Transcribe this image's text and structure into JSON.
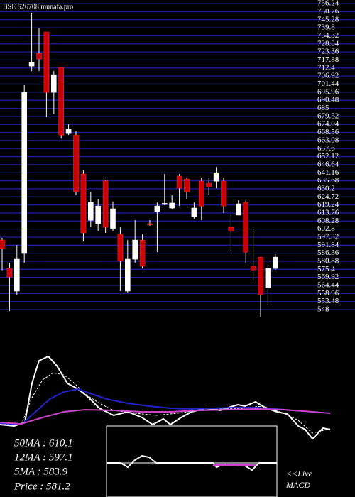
{
  "chart_data": {
    "type": "candlestick",
    "title": "BSE 526708 munafa.pro",
    "open": [
      595.3,
      576,
      560.6,
      586.2,
      713.7,
      722.4,
      736.9,
      695.8,
      712.7,
      667.8,
      666.8,
      640.3,
      608.8,
      606.5,
      635.6,
      603.1,
      599.2,
      560.6,
      582.3,
      595.3,
      606.5,
      614.7,
      620,
      617.1,
      638.8,
      636.9,
      611.3,
      635.4,
      634,
      635.4,
      635.4,
      604,
      612.3,
      621,
      577.5,
      583.7,
      563,
      576
    ],
    "high": [
      596.8,
      579.9,
      592,
      700.7,
      750,
      739.3,
      736.9,
      710.3,
      712.7,
      674.1,
      669.3,
      642.7,
      628.2,
      623.4,
      636.4,
      621.5,
      604,
      595.3,
      608.9,
      599.2,
      608.9,
      620.9,
      640.3,
      625.8,
      640.3,
      637.9,
      620.9,
      637.9,
      637.9,
      645,
      637.9,
      613.7,
      622.4,
      622.4,
      603.1,
      583.7,
      577.5,
      585.7
    ],
    "low": [
      574.7,
      547,
      558,
      579.9,
      710.3,
      710.3,
      678.9,
      681.3,
      664.4,
      666.8,
      625.8,
      594.4,
      604,
      601.6,
      600.2,
      601.6,
      560.6,
      559.6,
      579.9,
      576,
      605,
      587.1,
      619,
      616.1,
      618.5,
      623.4,
      609.8,
      608.9,
      625.8,
      630.6,
      613.7,
      587.1,
      612.3,
      579.9,
      567.8,
      542.7,
      550.9,
      575
    ],
    "close": [
      589.5,
      570.2,
      582.3,
      695.8,
      716.1,
      718.5,
      695.8,
      707.9,
      666.8,
      670.7,
      628.2,
      600.2,
      621,
      618.5,
      604,
      616.6,
      580.9,
      582.3,
      595.3,
      577.5,
      605.8,
      618.5,
      620.3,
      620.5,
      630.6,
      628.2,
      617.1,
      618.5,
      631.6,
      641.2,
      618.5,
      601.6,
      620,
      587.1,
      575,
      558.1,
      576,
      583.7
    ],
    "up_color": "#ffffff",
    "down_color": "#cc0000",
    "grid_color": "#1c1c9c",
    "ylim": [
      542.7,
      758.7
    ],
    "yticks": [
      548,
      553.48,
      558.96,
      564.44,
      569.92,
      575.4,
      580.88,
      586.36,
      591.84,
      597.32,
      602.8,
      608.28,
      613.76,
      619.24,
      624.72,
      630.2,
      635.68,
      641.16,
      646.64,
      652.12,
      657.6,
      663.08,
      668.56,
      674.04,
      679.52,
      685,
      690.48,
      695.96,
      701.44,
      706.92,
      712.4,
      717.88,
      723.36,
      728.84,
      734.32,
      739.8,
      745.28,
      750.76,
      756.24
    ],
    "grid": true,
    "stats": [
      "50MA : 610.1",
      "12MA : 597.1",
      "5MA : 583.9",
      "Price  : 581.2"
    ],
    "live_label": "<<Live",
    "macd_label": "MACD"
  }
}
